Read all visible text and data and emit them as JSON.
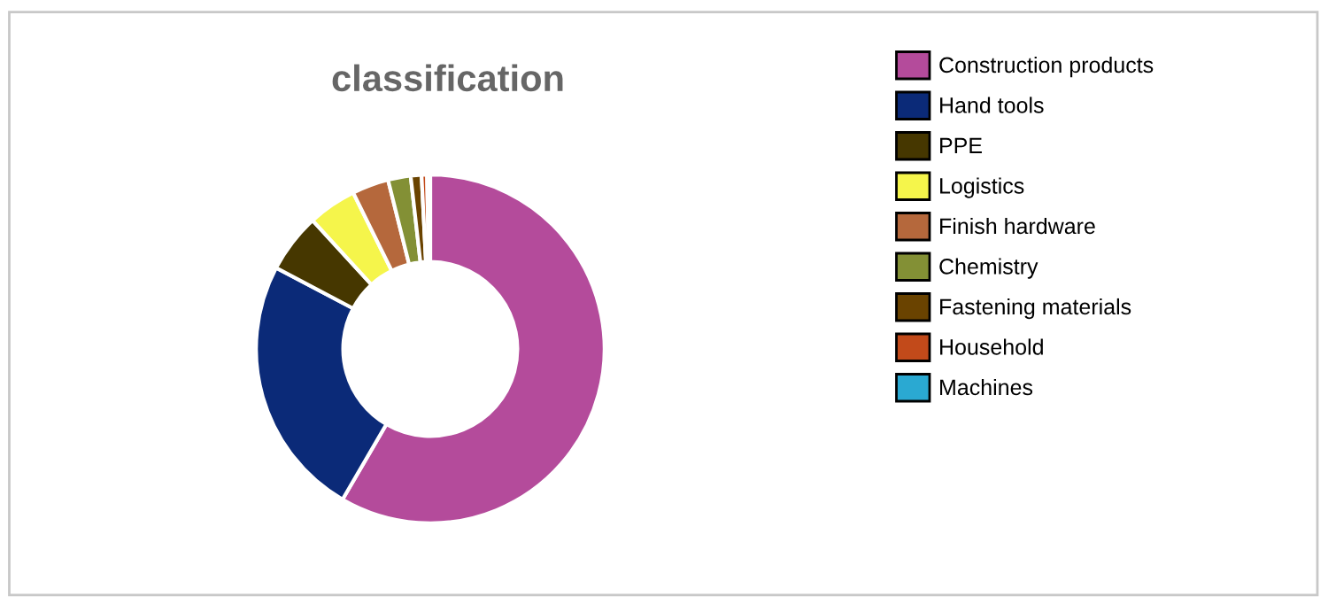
{
  "chart_data": {
    "type": "donut",
    "title": "classification",
    "categories": [
      "Construction products",
      "Hand tools",
      "PPE",
      "Logistics",
      "Finish hardware",
      "Chemistry",
      "Fastening materials",
      "Household",
      "Machines"
    ],
    "values": [
      58.4,
      24.3,
      5.5,
      4.5,
      3.4,
      2.1,
      1.0,
      0.5,
      0.3
    ],
    "colors": [
      "#b44b9b",
      "#0b2a78",
      "#463700",
      "#f5f54b",
      "#b5683c",
      "#839035",
      "#6a4300",
      "#c24a1a",
      "#2aa9d2"
    ],
    "legend": "right"
  }
}
